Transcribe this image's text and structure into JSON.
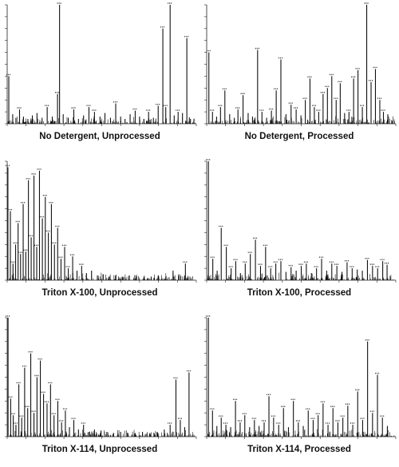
{
  "colors": {
    "peak": "#111111",
    "axis": "#222222",
    "annotation": "#2a9a5a",
    "label": "#333333"
  },
  "chart_data": [
    {
      "type": "bar",
      "title": "No Detergent, Unprocessed",
      "xlim": [
        700,
        2000
      ],
      "ylim": [
        0,
        100
      ],
      "series": [
        {
          "x": [
            711,
            738,
            760,
            785,
            812,
            842,
            873,
            905,
            940,
            975,
            1010,
            1046,
            1060,
            1085,
            1120,
            1158,
            1190,
            1225,
            1262,
            1300,
            1338,
            1372,
            1410,
            1446,
            1480,
            1510,
            1545,
            1580,
            1610,
            1640,
            1672,
            1705,
            1738,
            1770,
            1790,
            1820,
            1848,
            1875,
            1905,
            1935,
            1960
          ],
          "values": [
            40,
            8,
            5,
            12,
            6,
            4,
            7,
            9,
            5,
            14,
            6,
            25,
            100,
            8,
            5,
            12,
            4,
            7,
            14,
            10,
            6,
            9,
            5,
            17,
            6,
            4,
            8,
            11,
            6,
            4,
            10,
            5,
            15,
            80,
            14,
            100,
            7,
            10,
            9,
            72,
            4
          ]
        }
      ]
    },
    {
      "type": "bar",
      "title": "No Detergent, Processed",
      "xlim": [
        700,
        2000
      ],
      "ylim": [
        0,
        100
      ],
      "series": [
        {
          "x": [
            715,
            740,
            768,
            795,
            825,
            858,
            890,
            915,
            950,
            985,
            1015,
            1050,
            1080,
            1112,
            1145,
            1178,
            1210,
            1245,
            1280,
            1315,
            1348,
            1378,
            1410,
            1440,
            1470,
            1500,
            1530,
            1560,
            1590,
            1618,
            1648,
            1678,
            1710,
            1740,
            1770,
            1800,
            1830,
            1860,
            1890,
            1915,
            1945
          ],
          "values": [
            60,
            10,
            6,
            14,
            28,
            8,
            5,
            12,
            24,
            9,
            6,
            62,
            10,
            5,
            11,
            28,
            54,
            8,
            16,
            12,
            7,
            20,
            38,
            14,
            10,
            25,
            30,
            40,
            20,
            34,
            9,
            10,
            38,
            45,
            14,
            100,
            35,
            46,
            20,
            10,
            8
          ]
        }
      ]
    },
    {
      "type": "bar",
      "title": "Triton X-100, Unprocessed",
      "xlim": [
        700,
        2000
      ],
      "ylim": [
        0,
        100
      ],
      "series": [
        {
          "x": [
            705,
            722,
            740,
            758,
            775,
            792,
            810,
            828,
            846,
            865,
            884,
            903,
            922,
            942,
            962,
            983,
            1004,
            1025,
            1047,
            1070,
            1095,
            1120,
            1150,
            1180,
            1212,
            1245,
            1280,
            1320,
            1360,
            1400,
            1445,
            1490,
            1540,
            1590,
            1640,
            1690,
            1740,
            1790,
            1840,
            1880,
            1925
          ],
          "values": [
            95,
            58,
            14,
            30,
            48,
            22,
            64,
            24,
            84,
            36,
            88,
            28,
            92,
            52,
            70,
            40,
            64,
            30,
            44,
            18,
            28,
            10,
            20,
            8,
            12,
            6,
            8,
            4,
            5,
            3,
            4,
            3,
            4,
            3,
            3,
            3,
            4,
            3,
            8,
            5,
            14
          ]
        }
      ]
    },
    {
      "type": "bar",
      "title": "Triton X-100, Processed",
      "xlim": [
        700,
        2000
      ],
      "ylim": [
        0,
        100
      ],
      "series": [
        {
          "x": [
            712,
            742,
            772,
            800,
            835,
            868,
            900,
            932,
            965,
            1000,
            1035,
            1070,
            1105,
            1140,
            1175,
            1210,
            1245,
            1280,
            1315,
            1350,
            1385,
            1420,
            1455,
            1490,
            1525,
            1560,
            1595,
            1630,
            1665,
            1700,
            1735,
            1770,
            1805,
            1840,
            1875,
            1910,
            1940
          ],
          "values": [
            100,
            18,
            8,
            44,
            28,
            10,
            16,
            6,
            14,
            22,
            34,
            12,
            28,
            10,
            14,
            16,
            7,
            11,
            8,
            12,
            14,
            6,
            10,
            18,
            8,
            14,
            12,
            7,
            15,
            10,
            9,
            8,
            17,
            12,
            10,
            16,
            13
          ]
        }
      ]
    },
    {
      "type": "bar",
      "title": "Triton X-114, Unprocessed",
      "xlim": [
        700,
        2000
      ],
      "ylim": [
        0,
        100
      ],
      "series": [
        {
          "x": [
            706,
            724,
            742,
            760,
            780,
            800,
            820,
            841,
            862,
            884,
            905,
            928,
            950,
            974,
            998,
            1022,
            1048,
            1074,
            1100,
            1128,
            1158,
            1190,
            1225,
            1262,
            1300,
            1340,
            1385,
            1430,
            1480,
            1530,
            1580,
            1630,
            1680,
            1730,
            1780,
            1820,
            1860,
            1890,
            1920,
            1950
          ],
          "values": [
            100,
            32,
            18,
            10,
            44,
            16,
            58,
            24,
            70,
            20,
            50,
            64,
            36,
            28,
            44,
            18,
            30,
            12,
            22,
            8,
            14,
            6,
            10,
            4,
            6,
            3,
            4,
            3,
            4,
            3,
            3,
            4,
            3,
            4,
            6,
            10,
            48,
            14,
            8,
            54
          ]
        }
      ]
    },
    {
      "type": "bar",
      "title": "Triton X-114, Processed",
      "xlim": [
        700,
        2000
      ],
      "ylim": [
        0,
        100
      ],
      "series": [
        {
          "x": [
            712,
            740,
            770,
            800,
            832,
            865,
            898,
            930,
            962,
            995,
            1028,
            1060,
            1095,
            1128,
            1160,
            1195,
            1228,
            1262,
            1296,
            1330,
            1364,
            1398,
            1432,
            1466,
            1500,
            1534,
            1568,
            1602,
            1636,
            1670,
            1704,
            1738,
            1772,
            1806,
            1840,
            1874,
            1908,
            1942
          ],
          "values": [
            100,
            22,
            9,
            16,
            10,
            8,
            30,
            12,
            18,
            8,
            14,
            9,
            12,
            34,
            16,
            10,
            24,
            8,
            30,
            12,
            9,
            22,
            14,
            18,
            28,
            10,
            24,
            12,
            16,
            26,
            10,
            38,
            14,
            80,
            20,
            52,
            16,
            9
          ]
        }
      ]
    }
  ]
}
